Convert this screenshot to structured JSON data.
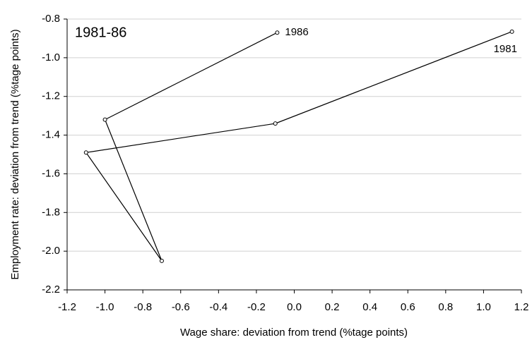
{
  "chart_data": {
    "type": "line",
    "title": "1981-86",
    "xlabel": "Wage share: deviation from trend (%tage points)",
    "ylabel": "Employment rate: deviation from trend (%tage points)",
    "x": [
      1.15,
      -0.1,
      -1.1,
      -0.7,
      -1.0,
      -0.09
    ],
    "values": [
      -0.865,
      -1.34,
      -1.49,
      -2.05,
      -1.32,
      -0.87
    ],
    "point_labels": [
      "1981",
      null,
      null,
      null,
      null,
      "1986"
    ],
    "color": "#000000",
    "xlim": [
      -1.2,
      1.2
    ],
    "xticks": [
      -1.2,
      {
        "value": -1.0,
        "label": "-1.0"
      },
      -0.8,
      -0.6,
      -0.4,
      -0.2,
      {
        "value": 0,
        "label": "0.0"
      },
      0.2,
      0.4,
      0.6,
      0.8,
      {
        "value": 1.0,
        "label": "1.0"
      },
      1.2
    ],
    "ylim": [
      -2.2,
      -0.8
    ],
    "yticks": [
      -2.2,
      {
        "value": -2.0,
        "label": "-2.0"
      },
      -1.8,
      -1.6,
      -1.4,
      -1.2,
      {
        "value": -1.0,
        "label": "-1.0"
      },
      -0.8
    ],
    "grid": true
  }
}
